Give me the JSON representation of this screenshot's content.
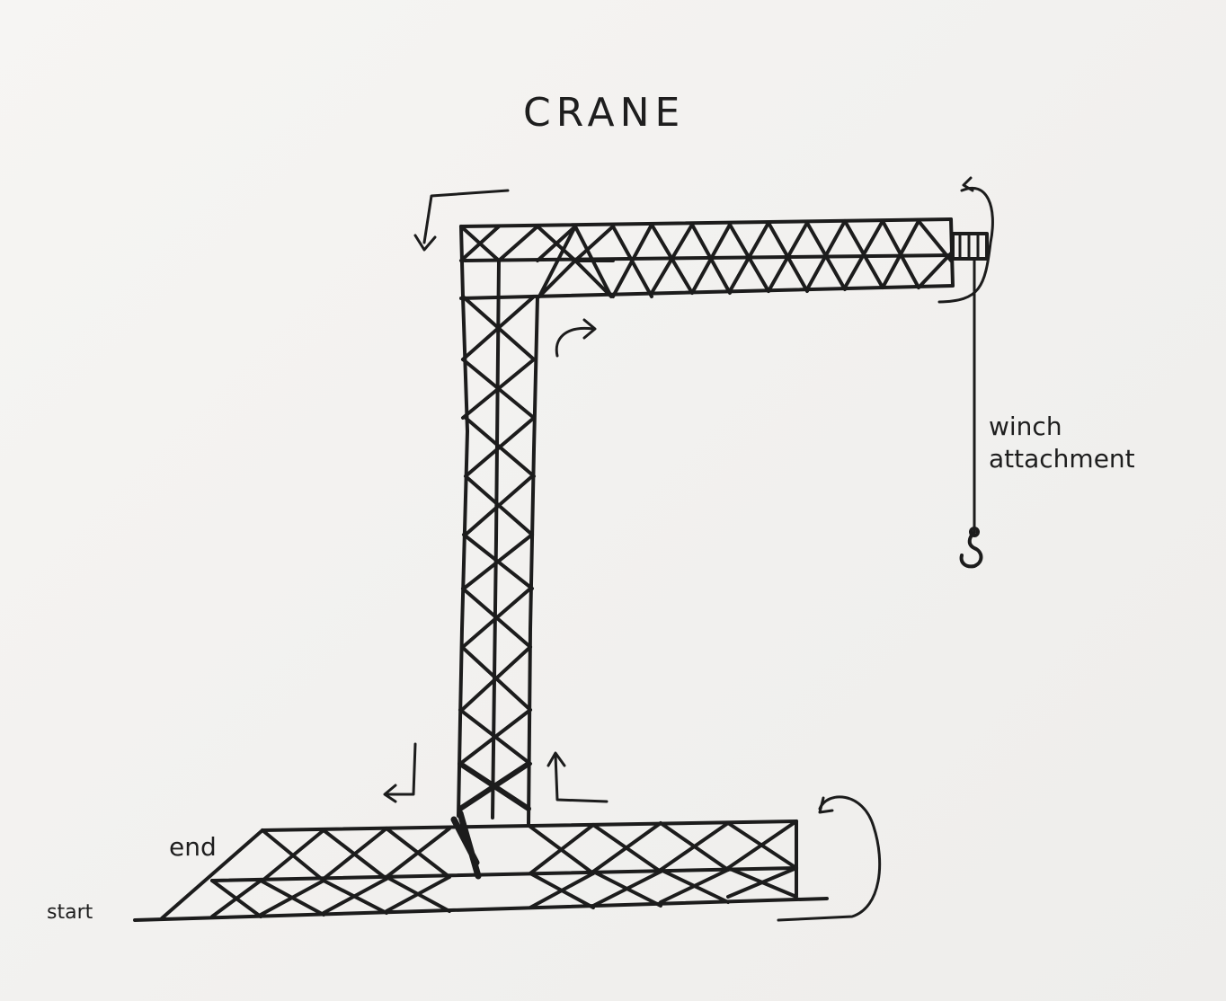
{
  "title": "CRANE",
  "labels": {
    "winch": [
      "winch",
      "attachment"
    ],
    "end": "end",
    "start": "start"
  },
  "colors": {
    "ink": "#1c1c1c",
    "paper": "#f3f2f0"
  },
  "icons": {
    "rotation_arrows": "curved-arrow-icon",
    "hook": "hook-icon",
    "winch_drum": "winch-drum-icon"
  }
}
